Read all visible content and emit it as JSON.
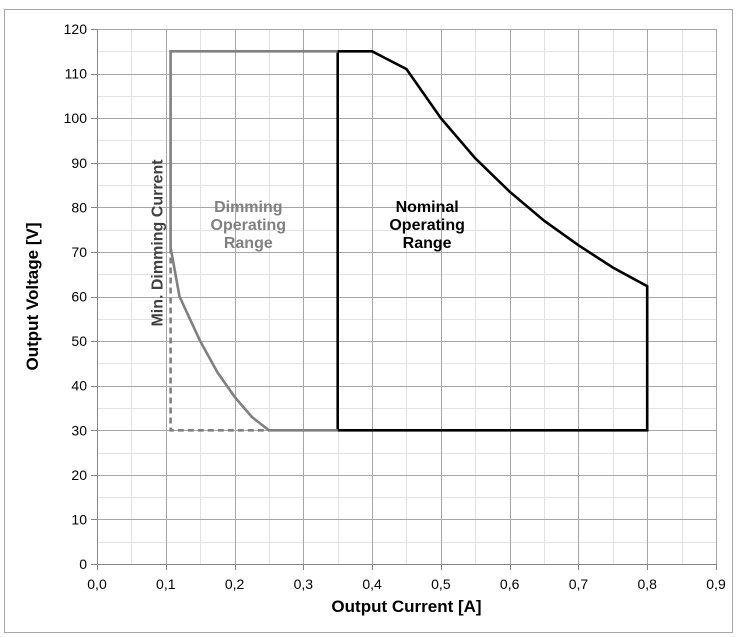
{
  "chart_data": {
    "type": "line",
    "xlabel": "Output Current [A]",
    "ylabel": "Output Voltage [V]",
    "xlim": [
      0,
      0.9
    ],
    "ylim": [
      0,
      120
    ],
    "x_ticks": [
      0,
      0.1,
      0.2,
      0.3,
      0.4,
      0.5,
      0.6,
      0.7,
      0.8,
      0.9
    ],
    "x_tick_labels": [
      "0,0",
      "0,1",
      "0,2",
      "0,3",
      "0,4",
      "0,5",
      "0,6",
      "0,7",
      "0,8",
      "0,9"
    ],
    "y_ticks": [
      0,
      10,
      20,
      30,
      40,
      50,
      60,
      70,
      80,
      90,
      100,
      110,
      120
    ],
    "y_tick_labels": [
      "0",
      "10",
      "20",
      "30",
      "40",
      "50",
      "60",
      "70",
      "80",
      "90",
      "100",
      "110",
      "120"
    ],
    "minor_x_step": 0.05,
    "minor_y_step": 5,
    "grid": true,
    "legend": "none",
    "series": [
      {
        "color": "#000000",
        "dashed": false,
        "points": [
          [
            0.35,
            30
          ],
          [
            0.35,
            115
          ],
          [
            0.4,
            115
          ],
          [
            0.45,
            111
          ],
          [
            0.5,
            100
          ],
          [
            0.55,
            91
          ],
          [
            0.6,
            83.5
          ],
          [
            0.65,
            77
          ],
          [
            0.7,
            71.5
          ],
          [
            0.75,
            66.5
          ],
          [
            0.8,
            62.3
          ],
          [
            0.8,
            30
          ],
          [
            0.35,
            30
          ]
        ]
      },
      {
        "color": "#808080",
        "dashed": false,
        "points": [
          [
            0.35,
            115
          ],
          [
            0.107,
            115
          ],
          [
            0.107,
            71
          ],
          [
            0.12,
            60
          ],
          [
            0.15,
            50
          ],
          [
            0.175,
            43
          ],
          [
            0.2,
            37.5
          ],
          [
            0.225,
            33
          ],
          [
            0.25,
            30
          ],
          [
            0.35,
            30
          ]
        ]
      },
      {
        "color": "#808080",
        "dashed": true,
        "points": [
          [
            0.107,
            71
          ],
          [
            0.107,
            30
          ],
          [
            0.25,
            30
          ]
        ]
      }
    ],
    "annotations": [
      {
        "id": "min-dimming",
        "lines": [
          "Min. Dimming Current"
        ],
        "x": 0.088,
        "y": 72,
        "rotate": -90,
        "color": "#404040"
      },
      {
        "id": "dimming-range",
        "lines": [
          "Dimming",
          "Operating",
          "Range"
        ],
        "x": 0.22,
        "y": 76,
        "rotate": 0,
        "color": "#808080"
      },
      {
        "id": "nominal-range",
        "lines": [
          "Nominal",
          "Operating",
          "Range"
        ],
        "x": 0.48,
        "y": 76,
        "rotate": 0,
        "color": "#000000"
      }
    ]
  }
}
